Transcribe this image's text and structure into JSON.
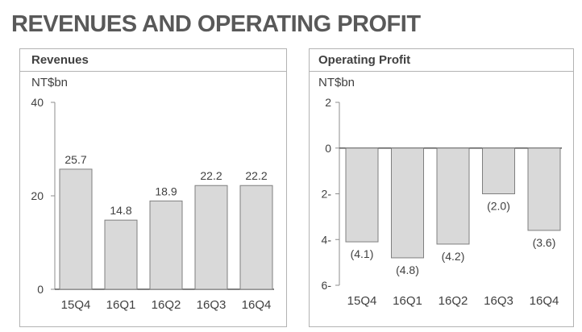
{
  "title": "REVENUES AND OPERATING PROFIT",
  "chart_data": [
    {
      "type": "bar",
      "title": "Revenues",
      "unit_label": "NT$bn",
      "categories": [
        "15Q4",
        "16Q1",
        "16Q2",
        "16Q3",
        "16Q4"
      ],
      "values": [
        25.7,
        14.8,
        18.9,
        22.2,
        22.2
      ],
      "value_labels": [
        "25.7",
        "14.8",
        "18.9",
        "22.2",
        "22.2"
      ],
      "ylim": [
        0,
        40
      ],
      "yticks": [
        0,
        20,
        40
      ],
      "ytick_labels": [
        "0",
        "20",
        "40"
      ],
      "grid": false,
      "bar_color": "#d9d9d9"
    },
    {
      "type": "bar",
      "title": "Operating Profit",
      "unit_label": "NT$bn",
      "categories": [
        "15Q4",
        "16Q1",
        "16Q2",
        "16Q3",
        "16Q4"
      ],
      "values": [
        -4.1,
        -4.8,
        -4.2,
        -2.0,
        -3.6
      ],
      "value_labels": [
        "(4.1)",
        "(4.8)",
        "(4.2)",
        "(2.0)",
        "(3.6)"
      ],
      "ylim": [
        -6,
        2
      ],
      "yticks": [
        2,
        0,
        -2,
        -4,
        -6
      ],
      "ytick_labels": [
        "2",
        "0",
        "2-",
        "4-",
        "6-"
      ],
      "grid": false,
      "bar_color": "#d9d9d9"
    }
  ]
}
